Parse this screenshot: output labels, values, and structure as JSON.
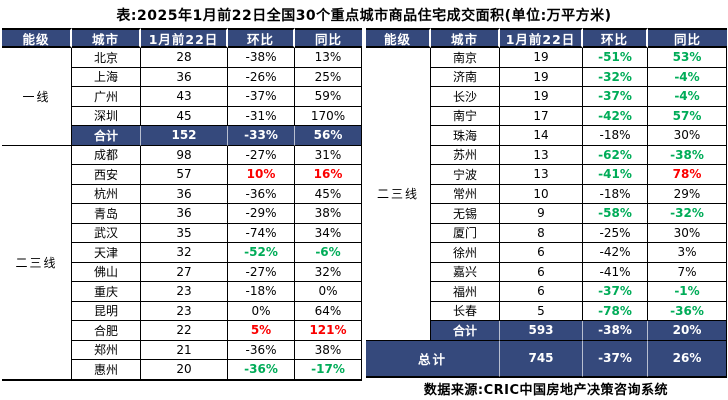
{
  "title": "表:2025年1月前22日全国30个重点城市商品住宅成交面积(单位:万平方米)",
  "source_note": "数据来源:CRIC中国房地产决策咨询系统",
  "columns": [
    "能级",
    "城市",
    "1月前22日",
    "环比",
    "同比"
  ],
  "colors": {
    "header_bg": "#35497C",
    "summary_bg": "#35497C",
    "positive_red": "#FB0000",
    "negative_green": "#00AC58",
    "border": "#000000"
  },
  "tables": [
    {
      "side": "left",
      "tiers": [
        {
          "label": "一线",
          "span": 5
        },
        {
          "label": "二三线",
          "span": 12
        }
      ],
      "rows": [
        {
          "city": "北京",
          "value": "28",
          "mom": "-38%",
          "yoy": "13%",
          "mom_style": "plain",
          "yoy_style": "plain",
          "kind": "city"
        },
        {
          "city": "上海",
          "value": "36",
          "mom": "-26%",
          "yoy": "25%",
          "mom_style": "plain",
          "yoy_style": "plain",
          "kind": "city"
        },
        {
          "city": "广州",
          "value": "43",
          "mom": "-37%",
          "yoy": "59%",
          "mom_style": "plain",
          "yoy_style": "plain",
          "kind": "city"
        },
        {
          "city": "深圳",
          "value": "45",
          "mom": "-31%",
          "yoy": "170%",
          "mom_style": "plain",
          "yoy_style": "plain",
          "kind": "city"
        },
        {
          "city": "合计",
          "value": "152",
          "mom": "-33%",
          "yoy": "56%",
          "mom_style": "plain",
          "yoy_style": "plain",
          "kind": "summary"
        },
        {
          "city": "成都",
          "value": "98",
          "mom": "-27%",
          "yoy": "31%",
          "mom_style": "plain",
          "yoy_style": "plain",
          "kind": "city"
        },
        {
          "city": "西安",
          "value": "57",
          "mom": "10%",
          "yoy": "16%",
          "mom_style": "red",
          "yoy_style": "red",
          "kind": "city"
        },
        {
          "city": "杭州",
          "value": "36",
          "mom": "-36%",
          "yoy": "45%",
          "mom_style": "plain",
          "yoy_style": "plain",
          "kind": "city"
        },
        {
          "city": "青岛",
          "value": "36",
          "mom": "-29%",
          "yoy": "38%",
          "mom_style": "plain",
          "yoy_style": "plain",
          "kind": "city"
        },
        {
          "city": "武汉",
          "value": "35",
          "mom": "-74%",
          "yoy": "34%",
          "mom_style": "plain",
          "yoy_style": "plain",
          "kind": "city"
        },
        {
          "city": "天津",
          "value": "32",
          "mom": "-52%",
          "yoy": "-6%",
          "mom_style": "green",
          "yoy_style": "green",
          "kind": "city"
        },
        {
          "city": "佛山",
          "value": "27",
          "mom": "-27%",
          "yoy": "32%",
          "mom_style": "plain",
          "yoy_style": "plain",
          "kind": "city"
        },
        {
          "city": "重庆",
          "value": "23",
          "mom": "-18%",
          "yoy": "0%",
          "mom_style": "plain",
          "yoy_style": "plain",
          "kind": "city"
        },
        {
          "city": "昆明",
          "value": "23",
          "mom": "0%",
          "yoy": "64%",
          "mom_style": "plain",
          "yoy_style": "plain",
          "kind": "city"
        },
        {
          "city": "合肥",
          "value": "22",
          "mom": "5%",
          "yoy": "121%",
          "mom_style": "red",
          "yoy_style": "red",
          "kind": "city"
        },
        {
          "city": "郑州",
          "value": "21",
          "mom": "-36%",
          "yoy": "38%",
          "mom_style": "plain",
          "yoy_style": "plain",
          "kind": "city"
        },
        {
          "city": "惠州",
          "value": "20",
          "mom": "-36%",
          "yoy": "-17%",
          "mom_style": "green",
          "yoy_style": "green",
          "kind": "city"
        }
      ]
    },
    {
      "side": "right",
      "tiers": [
        {
          "label": "二三线",
          "span": 15
        }
      ],
      "rows": [
        {
          "city": "南京",
          "value": "19",
          "mom": "-51%",
          "yoy": "53%",
          "mom_style": "green",
          "yoy_style": "green",
          "kind": "city"
        },
        {
          "city": "济南",
          "value": "19",
          "mom": "-32%",
          "yoy": "-4%",
          "mom_style": "green",
          "yoy_style": "green",
          "kind": "city"
        },
        {
          "city": "长沙",
          "value": "19",
          "mom": "-37%",
          "yoy": "-4%",
          "mom_style": "green",
          "yoy_style": "green",
          "kind": "city"
        },
        {
          "city": "南宁",
          "value": "17",
          "mom": "-42%",
          "yoy": "57%",
          "mom_style": "green",
          "yoy_style": "green",
          "kind": "city"
        },
        {
          "city": "珠海",
          "value": "14",
          "mom": "-18%",
          "yoy": "30%",
          "mom_style": "plain",
          "yoy_style": "plain",
          "kind": "city"
        },
        {
          "city": "苏州",
          "value": "13",
          "mom": "-62%",
          "yoy": "-38%",
          "mom_style": "green",
          "yoy_style": "green",
          "kind": "city"
        },
        {
          "city": "宁波",
          "value": "13",
          "mom": "-41%",
          "yoy": "78%",
          "mom_style": "green",
          "yoy_style": "red",
          "kind": "city"
        },
        {
          "city": "常州",
          "value": "10",
          "mom": "-18%",
          "yoy": "29%",
          "mom_style": "plain",
          "yoy_style": "plain",
          "kind": "city"
        },
        {
          "city": "无锡",
          "value": "9",
          "mom": "-58%",
          "yoy": "-32%",
          "mom_style": "green",
          "yoy_style": "green",
          "kind": "city"
        },
        {
          "city": "厦门",
          "value": "8",
          "mom": "-25%",
          "yoy": "30%",
          "mom_style": "plain",
          "yoy_style": "plain",
          "kind": "city"
        },
        {
          "city": "徐州",
          "value": "6",
          "mom": "-42%",
          "yoy": "3%",
          "mom_style": "plain",
          "yoy_style": "plain",
          "kind": "city"
        },
        {
          "city": "嘉兴",
          "value": "6",
          "mom": "-41%",
          "yoy": "7%",
          "mom_style": "plain",
          "yoy_style": "plain",
          "kind": "city"
        },
        {
          "city": "福州",
          "value": "6",
          "mom": "-37%",
          "yoy": "-1%",
          "mom_style": "green",
          "yoy_style": "green",
          "kind": "city"
        },
        {
          "city": "长春",
          "value": "5",
          "mom": "-78%",
          "yoy": "-36%",
          "mom_style": "green",
          "yoy_style": "green",
          "kind": "city"
        },
        {
          "city": "合计",
          "value": "593",
          "mom": "-38%",
          "yoy": "20%",
          "mom_style": "plain",
          "yoy_style": "plain",
          "kind": "summary"
        }
      ],
      "grand_total": {
        "label": "总计",
        "value": "745",
        "mom": "-37%",
        "yoy": "26%"
      }
    }
  ]
}
